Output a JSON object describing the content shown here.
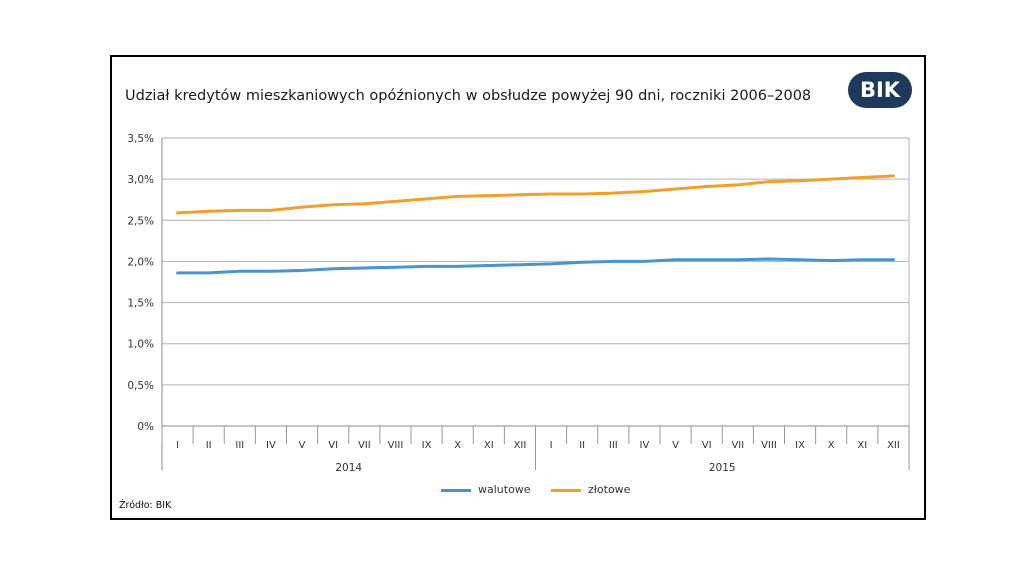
{
  "title": "Udział kredytów mieszkaniowych opóźnionych w obsłudze powyżej 90 dni, roczniki 2006–2008",
  "logo_text": "BIK",
  "source": "Źródło: BIK",
  "colors": {
    "walutowe": "#4a93cc",
    "zlotowe": "#f0a02a",
    "grid": "#b3b3b3",
    "logo_bg": "#1d3a5c"
  },
  "chart_data": {
    "type": "line",
    "title": "Udział kredytów mieszkaniowych opóźnionych w obsłudze powyżej 90 dni, roczniki 2006–2008",
    "categories": [
      "I",
      "II",
      "III",
      "IV",
      "V",
      "VI",
      "VII",
      "VIII",
      "IX",
      "X",
      "XI",
      "XII",
      "I",
      "II",
      "III",
      "IV",
      "V",
      "VI",
      "VII",
      "VIII",
      "IX",
      "X",
      "XI",
      "XII"
    ],
    "groups": [
      {
        "label": "2014",
        "start": 0,
        "end": 11
      },
      {
        "label": "2015",
        "start": 12,
        "end": 23
      }
    ],
    "y_ticks": [
      "0%",
      "0,5%",
      "1,0%",
      "1,5%",
      "2,0%",
      "2,5%",
      "3,0%",
      "3,5%"
    ],
    "ylim": [
      0,
      3.5
    ],
    "grid": true,
    "legend_position": "bottom",
    "series": [
      {
        "name": "walutowe",
        "color": "#4a93cc",
        "values": [
          1.86,
          1.86,
          1.88,
          1.88,
          1.89,
          1.91,
          1.92,
          1.93,
          1.94,
          1.94,
          1.95,
          1.96,
          1.97,
          1.99,
          2.0,
          2.0,
          2.02,
          2.02,
          2.02,
          2.03,
          2.02,
          2.01,
          2.02,
          2.02
        ]
      },
      {
        "name": "złotowe",
        "color": "#f0a02a",
        "values": [
          2.59,
          2.61,
          2.62,
          2.62,
          2.66,
          2.69,
          2.7,
          2.73,
          2.76,
          2.79,
          2.8,
          2.81,
          2.82,
          2.82,
          2.83,
          2.85,
          2.88,
          2.91,
          2.93,
          2.97,
          2.98,
          3.0,
          3.02,
          3.04
        ]
      }
    ]
  }
}
